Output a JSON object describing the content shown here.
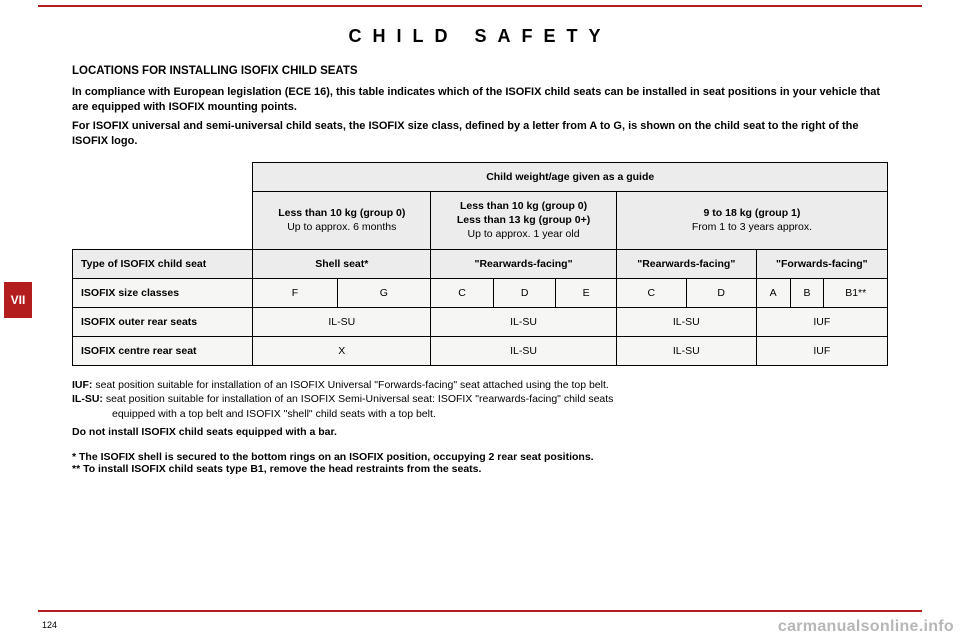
{
  "theme": {
    "accent": "#b31d1d",
    "header_bg": "#ececec",
    "body_bg": "#f6f6f4",
    "watermark_color": "#b7b7b7"
  },
  "chrome": {
    "side_tab": "VII",
    "page_number": "124",
    "watermark": "carmanualsonline.info"
  },
  "title": "CHILD SAFETY",
  "heading": "LOCATIONS FOR INSTALLING ISOFIX CHILD SEATS",
  "intro": {
    "p1": "In compliance with European legislation (ECE 16), this table indicates which of the ISOFIX child seats can be installed in seat positions in your vehicle that are equipped with ISOFIX mounting points.",
    "p2": "For ISOFIX universal and semi-universal child seats, the ISOFIX size class, defined by a letter from A to G, is shown on the child seat to the right of the ISOFIX logo."
  },
  "table": {
    "guide_header": "Child weight/age given as a guide",
    "col_a_title": "Less than 10 kg (group 0)",
    "col_a_sub": "Up to approx. 6 months",
    "col_b_title1": "Less than 10 kg (group 0)",
    "col_b_title2": "Less than 13 kg (group 0+)",
    "col_b_sub": "Up to approx. 1 year old",
    "col_c_title": "9 to 18 kg (group 1)",
    "col_c_sub": "From 1 to 3 years approx.",
    "row_type_label": "Type of ISOFIX child seat",
    "row_type_values": [
      "Shell seat*",
      "\"Rearwards-facing\"",
      "\"Rearwards-facing\"",
      "\"Forwards-facing\""
    ],
    "row_size_label": "ISOFIX size classes",
    "row_size_values": [
      "F",
      "G",
      "C",
      "D",
      "E",
      "C",
      "D",
      "A",
      "B",
      "B1**"
    ],
    "row_outer_label": "ISOFIX outer rear seats",
    "row_outer_values": [
      "IL-SU",
      "IL-SU",
      "IL-SU",
      "IUF"
    ],
    "row_centre_label": "ISOFIX centre rear seat",
    "row_centre_values": [
      "X",
      "IL-SU",
      "IL-SU",
      "IUF"
    ]
  },
  "legend": {
    "iuf_key": "IUF:",
    "iuf_body": " seat position suitable for installation of an ISOFIX Universal \"Forwards-facing\" seat attached using the top belt.",
    "ilsu_key": "IL-SU:",
    "ilsu_body": " seat position suitable for installation of an ISOFIX Semi-Universal seat: ISOFIX \"rearwards-facing\" child seats",
    "ilsu_cont": "equipped with a top belt and ISOFIX \"shell\" child seats with a top belt.",
    "nobar": "Do not install ISOFIX child seats equipped with a bar."
  },
  "footnotes": {
    "n1": "* The ISOFIX shell is secured to the bottom rings on an ISOFIX position, occupying 2 rear seat positions.",
    "n2": "** To install ISOFIX child seats type B1, remove the head restraints from the seats."
  }
}
